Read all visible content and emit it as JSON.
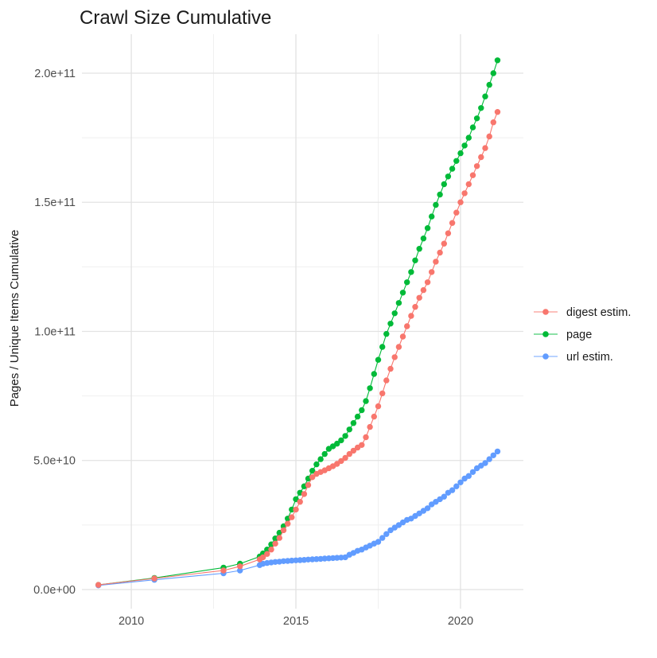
{
  "chart_data": {
    "type": "scatter",
    "title": "Crawl Size Cumulative",
    "xlabel": "",
    "ylabel": "Pages / Unique Items Cumulative",
    "value_unit": "billions of pages (1e9); tick labels shown in scientific notation",
    "grid": true,
    "legend_position": "right-center",
    "background_color": "#FFFFFF",
    "grid_major_color": "#E2E2E2",
    "grid_minor_color": "#EFEFEF",
    "xlim": [
      2008.5,
      2021.91
    ],
    "ylim": [
      -7.4,
      215.1
    ],
    "x_major_ticks": [
      {
        "v": 2010,
        "label": "2010"
      },
      {
        "v": 2015,
        "label": "2015"
      },
      {
        "v": 2020,
        "label": "2020"
      }
    ],
    "x_minor_ticks": [
      2012.5,
      2017.5
    ],
    "y_major_ticks": [
      {
        "v": 0,
        "label": "0.0e+00"
      },
      {
        "v": 50,
        "label": "5.0e+10"
      },
      {
        "v": 100,
        "label": "1.0e+11"
      },
      {
        "v": 150,
        "label": "1.5e+11"
      },
      {
        "v": 200,
        "label": "2.0e+11"
      }
    ],
    "y_minor_ticks": [
      25,
      75,
      125,
      175
    ],
    "legend": [
      {
        "key": "digest-estim",
        "name": "digest estim.",
        "color": "#F8766D"
      },
      {
        "key": "page",
        "name": "page",
        "color": "#00BA38"
      },
      {
        "key": "url-estim",
        "name": "url estim.",
        "color": "#619CFF"
      }
    ],
    "series": [
      {
        "key": "page",
        "name": "page",
        "color": "#00BA38",
        "points": [
          [
            2009,
            1.8
          ],
          [
            2010.7,
            4.5
          ],
          [
            2012.8,
            8.5
          ],
          [
            2013.3,
            10
          ],
          [
            2013.9,
            12.8
          ],
          [
            2014,
            14
          ],
          [
            2014.125,
            15.5
          ],
          [
            2014.25,
            17.5
          ],
          [
            2014.375,
            19.8
          ],
          [
            2014.5,
            22
          ],
          [
            2014.625,
            24.5
          ],
          [
            2014.75,
            27.5
          ],
          [
            2014.875,
            31
          ],
          [
            2015,
            35
          ],
          [
            2015.125,
            37.5
          ],
          [
            2015.25,
            40
          ],
          [
            2015.375,
            43
          ],
          [
            2015.5,
            46
          ],
          [
            2015.625,
            48.5
          ],
          [
            2015.75,
            50.5
          ],
          [
            2015.875,
            52.5
          ],
          [
            2016,
            54.5
          ],
          [
            2016.125,
            55.5
          ],
          [
            2016.25,
            56.5
          ],
          [
            2016.375,
            57.8
          ],
          [
            2016.5,
            59.5
          ],
          [
            2016.625,
            62
          ],
          [
            2016.75,
            64.5
          ],
          [
            2016.875,
            67
          ],
          [
            2017,
            69.5
          ],
          [
            2017.125,
            73
          ],
          [
            2017.25,
            78
          ],
          [
            2017.375,
            83.5
          ],
          [
            2017.5,
            89
          ],
          [
            2017.625,
            94
          ],
          [
            2017.75,
            99
          ],
          [
            2017.875,
            103
          ],
          [
            2018,
            107
          ],
          [
            2018.125,
            111
          ],
          [
            2018.25,
            115
          ],
          [
            2018.375,
            119
          ],
          [
            2018.5,
            123
          ],
          [
            2018.625,
            127.5
          ],
          [
            2018.75,
            132
          ],
          [
            2018.875,
            136
          ],
          [
            2019,
            140
          ],
          [
            2019.125,
            144.5
          ],
          [
            2019.25,
            149
          ],
          [
            2019.375,
            153
          ],
          [
            2019.5,
            157
          ],
          [
            2019.625,
            160
          ],
          [
            2019.75,
            163
          ],
          [
            2019.875,
            166
          ],
          [
            2020,
            169
          ],
          [
            2020.125,
            172
          ],
          [
            2020.25,
            175
          ],
          [
            2020.375,
            179
          ],
          [
            2020.5,
            182.5
          ],
          [
            2020.625,
            186.5
          ],
          [
            2020.75,
            191
          ],
          [
            2020.875,
            195.5
          ],
          [
            2021,
            200
          ],
          [
            2021.125,
            205
          ]
        ]
      },
      {
        "key": "url-estim",
        "name": "url estim.",
        "color": "#619CFF",
        "points": [
          [
            2009,
            1.6
          ],
          [
            2010.7,
            3.8
          ],
          [
            2012.8,
            6.3
          ],
          [
            2013.3,
            7.4
          ],
          [
            2013.9,
            9.5
          ],
          [
            2014,
            10
          ],
          [
            2014.125,
            10.3
          ],
          [
            2014.25,
            10.5
          ],
          [
            2014.375,
            10.7
          ],
          [
            2014.5,
            10.8
          ],
          [
            2014.625,
            11
          ],
          [
            2014.75,
            11.1
          ],
          [
            2014.875,
            11.2
          ],
          [
            2015,
            11.3
          ],
          [
            2015.125,
            11.4
          ],
          [
            2015.25,
            11.5
          ],
          [
            2015.375,
            11.6
          ],
          [
            2015.5,
            11.7
          ],
          [
            2015.625,
            11.8
          ],
          [
            2015.75,
            11.9
          ],
          [
            2015.875,
            12
          ],
          [
            2016,
            12.1
          ],
          [
            2016.125,
            12.2
          ],
          [
            2016.25,
            12.3
          ],
          [
            2016.375,
            12.4
          ],
          [
            2016.5,
            12.5
          ],
          [
            2016.625,
            13.5
          ],
          [
            2016.75,
            14.2
          ],
          [
            2016.875,
            15
          ],
          [
            2017,
            15.5
          ],
          [
            2017.125,
            16.3
          ],
          [
            2017.25,
            17
          ],
          [
            2017.375,
            17.8
          ],
          [
            2017.5,
            18.5
          ],
          [
            2017.625,
            20
          ],
          [
            2017.75,
            21.5
          ],
          [
            2017.875,
            23
          ],
          [
            2018,
            24
          ],
          [
            2018.125,
            25
          ],
          [
            2018.25,
            26
          ],
          [
            2018.375,
            27
          ],
          [
            2018.5,
            27.5
          ],
          [
            2018.625,
            28.5
          ],
          [
            2018.75,
            29.5
          ],
          [
            2018.875,
            30.5
          ],
          [
            2019,
            31.5
          ],
          [
            2019.125,
            33
          ],
          [
            2019.25,
            34
          ],
          [
            2019.375,
            35
          ],
          [
            2019.5,
            36
          ],
          [
            2019.625,
            37.5
          ],
          [
            2019.75,
            38.5
          ],
          [
            2019.875,
            40
          ],
          [
            2020,
            41.5
          ],
          [
            2020.125,
            43
          ],
          [
            2020.25,
            44
          ],
          [
            2020.375,
            45.5
          ],
          [
            2020.5,
            47
          ],
          [
            2020.625,
            48
          ],
          [
            2020.75,
            49
          ],
          [
            2020.875,
            50.5
          ],
          [
            2021,
            52
          ],
          [
            2021.125,
            53.5
          ]
        ]
      },
      {
        "key": "digest-estim",
        "name": "digest estim.",
        "color": "#F8766D",
        "points": [
          [
            2009,
            1.8
          ],
          [
            2010.7,
            4.3
          ],
          [
            2012.8,
            7.4
          ],
          [
            2013.3,
            9
          ],
          [
            2013.9,
            11.7
          ],
          [
            2014,
            12.5
          ],
          [
            2014.125,
            13.8
          ],
          [
            2014.25,
            15.5
          ],
          [
            2014.375,
            17.8
          ],
          [
            2014.5,
            20
          ],
          [
            2014.625,
            23
          ],
          [
            2014.75,
            25.5
          ],
          [
            2014.875,
            28
          ],
          [
            2015,
            31
          ],
          [
            2015.125,
            34
          ],
          [
            2015.25,
            37
          ],
          [
            2015.375,
            40.5
          ],
          [
            2015.5,
            43.5
          ],
          [
            2015.625,
            44.8
          ],
          [
            2015.75,
            45.5
          ],
          [
            2015.875,
            46.2
          ],
          [
            2016,
            47
          ],
          [
            2016.125,
            47.8
          ],
          [
            2016.25,
            48.7
          ],
          [
            2016.375,
            49.8
          ],
          [
            2016.5,
            51
          ],
          [
            2016.625,
            52.5
          ],
          [
            2016.75,
            53.8
          ],
          [
            2016.875,
            55
          ],
          [
            2017,
            56
          ],
          [
            2017.125,
            59
          ],
          [
            2017.25,
            63
          ],
          [
            2017.375,
            67
          ],
          [
            2017.5,
            71
          ],
          [
            2017.625,
            76
          ],
          [
            2017.75,
            81
          ],
          [
            2017.875,
            85.5
          ],
          [
            2018,
            90
          ],
          [
            2018.125,
            94
          ],
          [
            2018.25,
            98
          ],
          [
            2018.375,
            102
          ],
          [
            2018.5,
            106
          ],
          [
            2018.625,
            109.5
          ],
          [
            2018.75,
            113
          ],
          [
            2018.875,
            116
          ],
          [
            2019,
            119
          ],
          [
            2019.125,
            123
          ],
          [
            2019.25,
            127
          ],
          [
            2019.375,
            130.5
          ],
          [
            2019.5,
            134
          ],
          [
            2019.625,
            138
          ],
          [
            2019.75,
            142
          ],
          [
            2019.875,
            146
          ],
          [
            2020,
            150
          ],
          [
            2020.125,
            153.5
          ],
          [
            2020.25,
            157
          ],
          [
            2020.375,
            160.5
          ],
          [
            2020.5,
            164
          ],
          [
            2020.625,
            167.5
          ],
          [
            2020.75,
            171
          ],
          [
            2020.875,
            175.5
          ],
          [
            2021,
            181
          ],
          [
            2021.125,
            185
          ]
        ]
      }
    ]
  }
}
